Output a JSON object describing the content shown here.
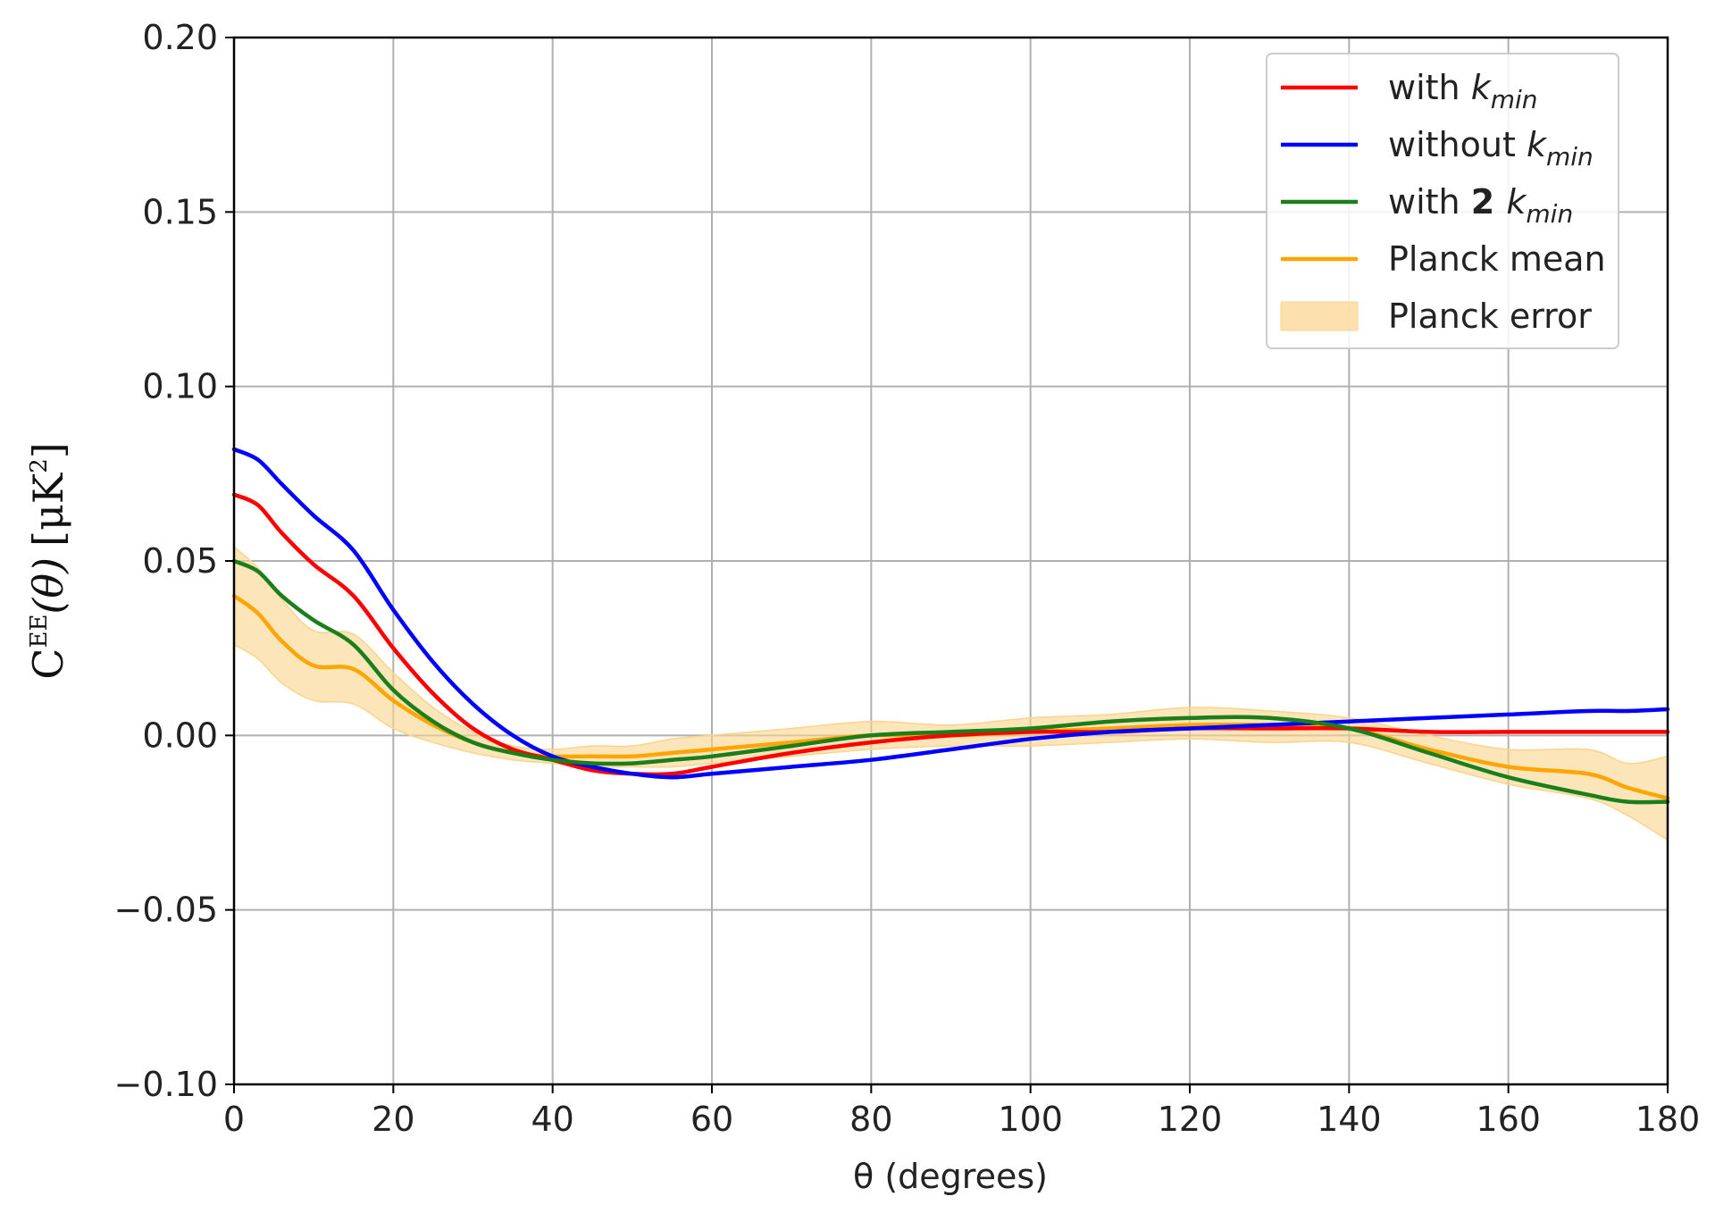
{
  "chart_data": {
    "type": "line",
    "title": "",
    "xlabel": "θ (degrees)",
    "ylabel": "C^EE(θ) [μK²]",
    "ylabel_parts": {
      "main": "C",
      "sup": "EE",
      "arg": "(θ)",
      "units": "[μK",
      "units_sup": "2",
      "units_end": "]"
    },
    "xlim": [
      0,
      180
    ],
    "ylim": [
      -0.1,
      0.2
    ],
    "x_ticks": [
      0,
      20,
      40,
      60,
      80,
      100,
      120,
      140,
      160,
      180
    ],
    "x_tick_labels": [
      "0",
      "20",
      "40",
      "60",
      "80",
      "100",
      "120",
      "140",
      "160",
      "180"
    ],
    "y_ticks": [
      -0.1,
      -0.05,
      0.0,
      0.05,
      0.1,
      0.15,
      0.2
    ],
    "y_tick_labels": [
      "−0.10",
      "−0.05",
      "0.00",
      "0.05",
      "0.10",
      "0.15",
      "0.20"
    ],
    "grid": true,
    "legend_position": "top-right",
    "x": [
      0,
      3,
      6,
      10,
      15,
      20,
      25,
      30,
      35,
      40,
      45,
      50,
      55,
      60,
      70,
      80,
      90,
      100,
      110,
      120,
      130,
      140,
      150,
      160,
      170,
      175,
      180
    ],
    "series": [
      {
        "name": "with k_min",
        "legend_plain": "with ",
        "legend_italic": "k",
        "legend_sub": "min",
        "color": "#ff0000",
        "values": [
          0.069,
          0.066,
          0.058,
          0.049,
          0.04,
          0.025,
          0.012,
          0.002,
          -0.004,
          -0.007,
          -0.01,
          -0.011,
          -0.011,
          -0.009,
          -0.005,
          -0.002,
          0.0,
          0.001,
          0.001,
          0.002,
          0.002,
          0.002,
          0.001,
          0.001,
          0.001,
          0.001,
          0.001
        ]
      },
      {
        "name": "without k_min",
        "legend_plain": "without ",
        "legend_italic": "k",
        "legend_sub": "min",
        "color": "#0000ff",
        "values": [
          0.082,
          0.079,
          0.072,
          0.063,
          0.053,
          0.036,
          0.021,
          0.009,
          0.0,
          -0.006,
          -0.009,
          -0.011,
          -0.012,
          -0.011,
          -0.009,
          -0.007,
          -0.004,
          -0.001,
          0.001,
          0.002,
          0.003,
          0.004,
          0.005,
          0.006,
          0.007,
          0.007,
          0.0075
        ]
      },
      {
        "name": "with 2 k_min",
        "legend_plain": "with ",
        "legend_bold": "2",
        "legend_italic": "k",
        "legend_sub": "min",
        "color": "#1a7f1a",
        "values": [
          0.05,
          0.047,
          0.04,
          0.033,
          0.026,
          0.013,
          0.004,
          -0.002,
          -0.005,
          -0.007,
          -0.008,
          -0.008,
          -0.007,
          -0.006,
          -0.003,
          0.0,
          0.001,
          0.002,
          0.004,
          0.005,
          0.005,
          0.002,
          -0.005,
          -0.012,
          -0.017,
          -0.019,
          -0.019
        ]
      },
      {
        "name": "Planck mean",
        "legend_plain": "Planck mean",
        "color": "#ffa500",
        "values": [
          0.04,
          0.035,
          0.027,
          0.02,
          0.019,
          0.01,
          0.003,
          -0.002,
          -0.005,
          -0.006,
          -0.006,
          -0.006,
          -0.005,
          -0.004,
          -0.002,
          0.0,
          0.0,
          0.001,
          0.002,
          0.003,
          0.003,
          0.002,
          -0.004,
          -0.009,
          -0.011,
          -0.015,
          -0.018
        ]
      }
    ],
    "band": {
      "name": "Planck error",
      "legend_plain": "Planck error",
      "color": "#fbd38c",
      "lower": [
        0.026,
        0.022,
        0.015,
        0.01,
        0.009,
        0.002,
        -0.002,
        -0.005,
        -0.007,
        -0.008,
        -0.009,
        -0.009,
        -0.009,
        -0.008,
        -0.006,
        -0.004,
        -0.003,
        -0.003,
        -0.002,
        -0.001,
        -0.002,
        -0.002,
        -0.008,
        -0.014,
        -0.018,
        -0.023,
        -0.03
      ],
      "upper": [
        0.054,
        0.048,
        0.039,
        0.03,
        0.029,
        0.018,
        0.008,
        0.001,
        -0.003,
        -0.004,
        -0.003,
        -0.003,
        -0.001,
        0.0,
        0.002,
        0.004,
        0.003,
        0.005,
        0.006,
        0.008,
        0.007,
        0.005,
        0.0,
        -0.004,
        -0.004,
        -0.008,
        -0.006
      ]
    }
  }
}
